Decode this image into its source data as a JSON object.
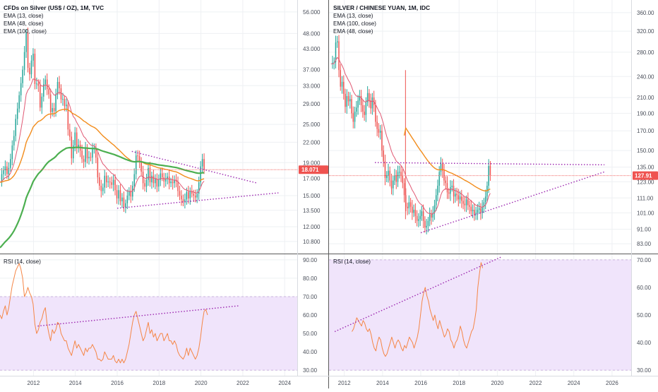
{
  "colors": {
    "candle_up": "#26a69a",
    "candle_down": "#ef5350",
    "ema_short": "#e05873",
    "ema_mid": "#f28c1b",
    "ema_long": "#4caf50",
    "rsi_line": "#f58646",
    "rsi_band": "#f0e4fb",
    "trendline": "#9c27b0",
    "price_tag": "#ef5350",
    "grid": "#eef0f3",
    "divider": "#666666"
  },
  "chart_data": [
    {
      "type": "candlestick",
      "title": "CFDs on Silver (US$ / OZ), 1M, TVC",
      "legend": [
        "EMA (13, close)",
        "EMA (48, close)",
        "EMA (100, close)"
      ],
      "price_scale": "log",
      "y_ticks": [
        "56.000",
        "48.000",
        "43.000",
        "37.000",
        "33.000",
        "29.000",
        "25.000",
        "22.000",
        "19.000",
        "17.000",
        "15.000",
        "13.500",
        "12.000",
        "10.800"
      ],
      "y_tick_values": [
        56,
        48,
        43,
        37,
        33,
        29,
        25,
        22,
        19,
        17,
        15,
        13.5,
        12,
        10.8
      ],
      "ylim": [
        9.9,
        61
      ],
      "last_price_label": "18.071",
      "last_price": 18.071,
      "x_ticks": [
        "2012",
        "2014",
        "2016",
        "2018",
        "2020",
        "2022",
        "2024"
      ],
      "x_tick_values": [
        2012,
        2014,
        2016,
        2018,
        2020,
        2022,
        2024
      ],
      "xlim": [
        2010.4,
        2024.6
      ],
      "start": 2010.4,
      "closes": [
        16.5,
        17.5,
        18.0,
        18.5,
        17.5,
        18.3,
        19.5,
        21.5,
        23.0,
        26.0,
        28.0,
        30.8,
        33.6,
        37.0,
        42.0,
        48.0,
        37.5,
        35.8,
        39.5,
        41.5,
        33.4,
        33.5,
        33.0,
        28.2,
        30.5,
        33.3,
        34.5,
        32.2,
        31.0,
        27.3,
        28.1,
        27.5,
        31.0,
        33.9,
        32.4,
        29.9,
        30.0,
        28.5,
        28.8,
        24.1,
        22.9,
        19.6,
        21.5,
        23.6,
        21.1,
        21.6,
        20.7,
        19.5,
        19.1,
        21.1,
        19.6,
        19.8,
        19.7,
        21.0,
        21.0,
        19.7,
        17.1,
        16.1,
        15.5,
        15.9,
        17.3,
        16.5,
        16.6,
        16.5,
        16.2,
        16.8,
        15.6,
        14.7,
        15.6,
        14.4,
        14.8,
        13.8,
        14.2,
        15.0,
        15.5,
        14.9,
        16.1,
        17.5,
        20.0,
        19.9,
        19.1,
        17.8,
        16.4,
        16.0,
        16.8,
        18.3,
        16.5,
        17.3,
        16.4,
        16.9,
        16.0,
        16.8,
        17.6,
        17.1,
        16.6,
        16.9,
        17.2,
        16.4,
        16.6,
        16.4,
        16.8,
        16.6,
        15.5,
        15.0,
        14.6,
        14.3,
        14.6,
        15.4,
        14.7,
        15.5,
        15.2,
        15.0,
        14.8,
        15.2,
        16.5,
        18.5,
        19.5,
        18.07
      ]
    },
    {
      "type": "candlestick",
      "title": "SILVER / CHINESE YUAN, 1M, IDC",
      "legend": [
        "EMA (13, close)",
        "EMA (100, close)",
        "EMA (48, close)"
      ],
      "price_scale": "log",
      "y_ticks": [
        "360.00",
        "320.00",
        "280.00",
        "240.00",
        "210.00",
        "190.00",
        "170.00",
        "150.00",
        "135.00",
        "123.00",
        "111.00",
        "101.00",
        "91.00",
        "83.00"
      ],
      "y_tick_values": [
        360,
        320,
        280,
        240,
        210,
        190,
        170,
        150,
        135,
        123,
        111,
        101,
        91,
        83
      ],
      "ylim": [
        78,
        390
      ],
      "last_price_label": "127.91",
      "last_price": 127.91,
      "x_ticks": [
        "2012",
        "2014",
        "2016",
        "2018",
        "2020",
        "2022",
        "2024",
        "2026"
      ],
      "x_tick_values": [
        2012,
        2014,
        2016,
        2018,
        2020,
        2022,
        2024,
        2026
      ],
      "xlim": [
        2011.2,
        2027.0
      ],
      "start": 2011.3,
      "spike": {
        "x": 2015.2,
        "high": 250,
        "low": 97
      },
      "closes": [
        260,
        262,
        263,
        298,
        300,
        250,
        225,
        232,
        215,
        198,
        212,
        205,
        208,
        190,
        180,
        192,
        197,
        206,
        212,
        200,
        192,
        188,
        204,
        216,
        206,
        196,
        210,
        200,
        180,
        172,
        168,
        170,
        150,
        140,
        126,
        128,
        132,
        124,
        118,
        124,
        128,
        123,
        131,
        131,
        128,
        122,
        113,
        105,
        104,
        108,
        105,
        101,
        103,
        99,
        96,
        97,
        99,
        102,
        96,
        92,
        93,
        96,
        100,
        98,
        101,
        106,
        113,
        120,
        131,
        138,
        132,
        124,
        122,
        115,
        114,
        119,
        120,
        112,
        114,
        113,
        110,
        112,
        109,
        107,
        106,
        110,
        106,
        105,
        102,
        103,
        100,
        101,
        103,
        104,
        101,
        105,
        108,
        112,
        120,
        136,
        127.91
      ]
    },
    {
      "type": "line",
      "title": "RSI (14, close)",
      "y_ticks": [
        "90.00",
        "80.00",
        "70.00",
        "60.00",
        "50.00",
        "40.00",
        "30.00"
      ],
      "y_tick_values": [
        90,
        80,
        70,
        60,
        50,
        40,
        30
      ],
      "ylim": [
        27,
        93
      ],
      "band": [
        30,
        70
      ],
      "x_ticks": [
        "2012",
        "2014",
        "2016",
        "2018",
        "2020",
        "2022",
        "2024"
      ],
      "x_tick_values": [
        2012,
        2014,
        2016,
        2018,
        2020,
        2022,
        2024
      ],
      "xlim": [
        2010.4,
        2024.6
      ],
      "start": 2010.4,
      "values": [
        60,
        58,
        62,
        65,
        60,
        64,
        70,
        76,
        80,
        84,
        86,
        88,
        85,
        80,
        70,
        72,
        75,
        72,
        70,
        66,
        55,
        50,
        52,
        56,
        58,
        62,
        64,
        55,
        50,
        46,
        52,
        50,
        52,
        56,
        55,
        50,
        48,
        46,
        46,
        42,
        40,
        38,
        42,
        46,
        42,
        44,
        42,
        40,
        38,
        42,
        40,
        42,
        42,
        44,
        42,
        40,
        36,
        36,
        35,
        36,
        40,
        38,
        36,
        36,
        36,
        38,
        35,
        34,
        36,
        34,
        36,
        34,
        36,
        40,
        44,
        50,
        56,
        60,
        62,
        58,
        54,
        50,
        46,
        48,
        52,
        56,
        50,
        52,
        48,
        50,
        46,
        48,
        50,
        50,
        46,
        48,
        50,
        46,
        46,
        44,
        46,
        44,
        40,
        38,
        37,
        36,
        38,
        42,
        38,
        42,
        40,
        38,
        36,
        38,
        42,
        48,
        56,
        62,
        63,
        60
      ]
    },
    {
      "type": "line",
      "title": "RSI (14, close)",
      "y_ticks": [
        "70.00",
        "60.00",
        "50.00",
        "40.00",
        "30.00"
      ],
      "y_tick_values": [
        70,
        60,
        50,
        40,
        30
      ],
      "ylim": [
        28,
        72
      ],
      "band": [
        30,
        70
      ],
      "x_ticks": [
        "2012",
        "2014",
        "2016",
        "2018",
        "2020",
        "2022",
        "2024",
        "2026"
      ],
      "x_tick_values": [
        2012,
        2014,
        2016,
        2018,
        2020,
        2022,
        2024,
        2026
      ],
      "xlim": [
        2011.2,
        2027.0
      ],
      "start": 2012.4,
      "values": [
        44,
        45,
        47,
        49,
        48,
        47,
        46,
        48,
        47,
        45,
        44,
        45,
        43,
        40,
        38,
        37,
        40,
        42,
        41,
        38,
        36,
        35,
        36,
        38,
        40,
        42,
        40,
        38,
        40,
        41,
        40,
        38,
        37,
        39,
        38,
        40,
        42,
        41,
        40,
        38,
        40,
        42,
        45,
        50,
        55,
        58,
        60,
        57,
        55,
        52,
        50,
        48,
        50,
        47,
        45,
        48,
        46,
        44,
        42,
        43,
        45,
        44,
        41,
        40,
        38,
        40,
        41,
        43,
        46,
        44,
        41,
        39,
        38,
        40,
        42,
        44,
        45,
        48,
        52,
        60,
        65,
        69,
        67
      ]
    }
  ],
  "trendlines_note": ""
}
